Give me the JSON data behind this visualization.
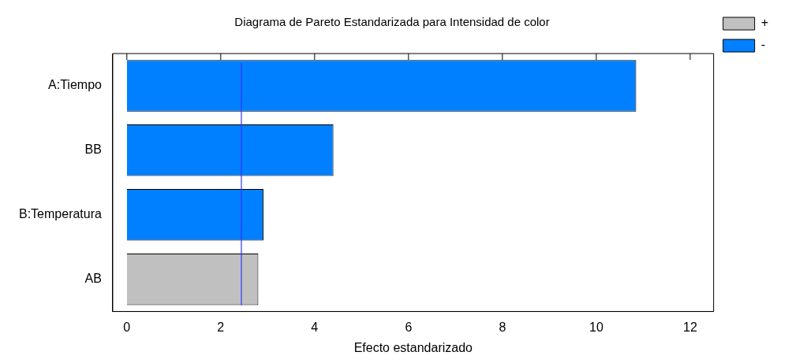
{
  "chart_data": {
    "type": "bar",
    "orientation": "horizontal",
    "stacked": true,
    "title": "Diagrama de Pareto Estandarizada para Intensidad de color",
    "xlabel": "Efecto estandarizado",
    "categories": [
      "A:Tiempo",
      "BB",
      "B:Temperatura",
      "AB"
    ],
    "series": [
      {
        "name": "+",
        "color": "#c0c0c0",
        "values": [
          null,
          null,
          null,
          2.8
        ]
      },
      {
        "name": "-",
        "color": "#0080ff",
        "values": [
          10.85,
          4.4,
          2.91,
          null
        ]
      }
    ],
    "xlim": [
      -0.3,
      12.5
    ],
    "xticks": [
      0,
      2,
      4,
      6,
      8,
      10,
      12
    ],
    "ref_lines": [
      {
        "axis": "x",
        "value": 2.44,
        "color": "#3333ff"
      }
    ],
    "grid": false,
    "legend": "top right"
  }
}
